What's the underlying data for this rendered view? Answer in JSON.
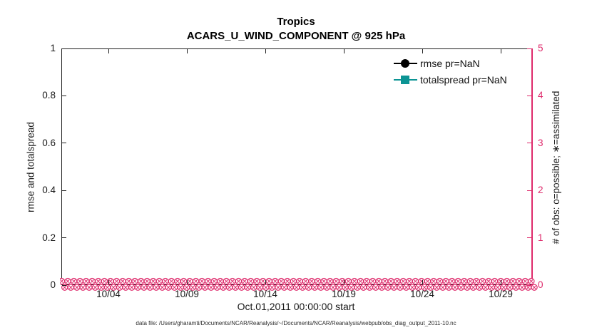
{
  "figure": {
    "title_line1": "Tropics",
    "title_line2": "ACARS_U_WIND_COMPONENT @ 925 hPa",
    "xlabel": "Oct.01,2011 00:00:00 start",
    "ylabel_left": "rmse and totalspread",
    "ylabel_right": "# of obs: o=possible; ∗=assimilated",
    "caption": "data file: /Users/gharamti/Documents/NCAR/Reanalysis/~/Documents/NCAR/Reanalysis/webpub/obs_diag_output_2011-10.nc"
  },
  "colors": {
    "obs_pink": "#DE2A6B",
    "spread_teal": "#0C9494",
    "rmse_black": "#000000",
    "axis_dark": "#202020"
  },
  "legend": [
    {
      "label": "rmse pr=NaN",
      "marker": "circle",
      "color": "#000000"
    },
    {
      "label": "totalspread pr=NaN",
      "marker": "square",
      "color": "#0C9494"
    }
  ],
  "chart_data": {
    "type": "line",
    "title": "Tropics",
    "subtitle": "ACARS_U_WIND_COMPONENT @ 925 hPa",
    "xlabel": "Oct.01,2011 00:00:00 start",
    "ylabel_left": "rmse and totalspread",
    "ylabel_right": "# of obs: o=possible; ∗=assimilated",
    "x_tick_labels": [
      "10/04",
      "10/09",
      "10/14",
      "10/19",
      "10/24",
      "10/29"
    ],
    "y_left_tick_labels": [
      "0",
      "0.2",
      "0.4",
      "0.6",
      "0.8",
      "1"
    ],
    "y_right_tick_labels": [
      "0",
      "1",
      "2",
      "3",
      "4",
      "5"
    ],
    "ylim_left": [
      0,
      1
    ],
    "ylim_right": [
      0,
      5
    ],
    "x_range": "Oct 01 2011 to Oct 31 2011, ticks every 5 days",
    "grid": false,
    "legend_position": "upper right, no box",
    "series": [
      {
        "name": "rmse pr=NaN",
        "color": "#000000",
        "marker": "circle",
        "values": "all NaN - no line drawn"
      },
      {
        "name": "totalspread pr=NaN",
        "color": "#0C9494",
        "marker": "square",
        "values": "all NaN - no line drawn"
      },
      {
        "name": "# of obs possible (o markers, right axis)",
        "color": "#DE2A6B",
        "constant_value": 0
      },
      {
        "name": "# of obs assimilated (∗ markers, right axis)",
        "color": "#DE2A6B",
        "constant_value": 0
      }
    ],
    "obs_band": {
      "rows": 2,
      "markers_per_row": 78,
      "value": 0
    }
  }
}
